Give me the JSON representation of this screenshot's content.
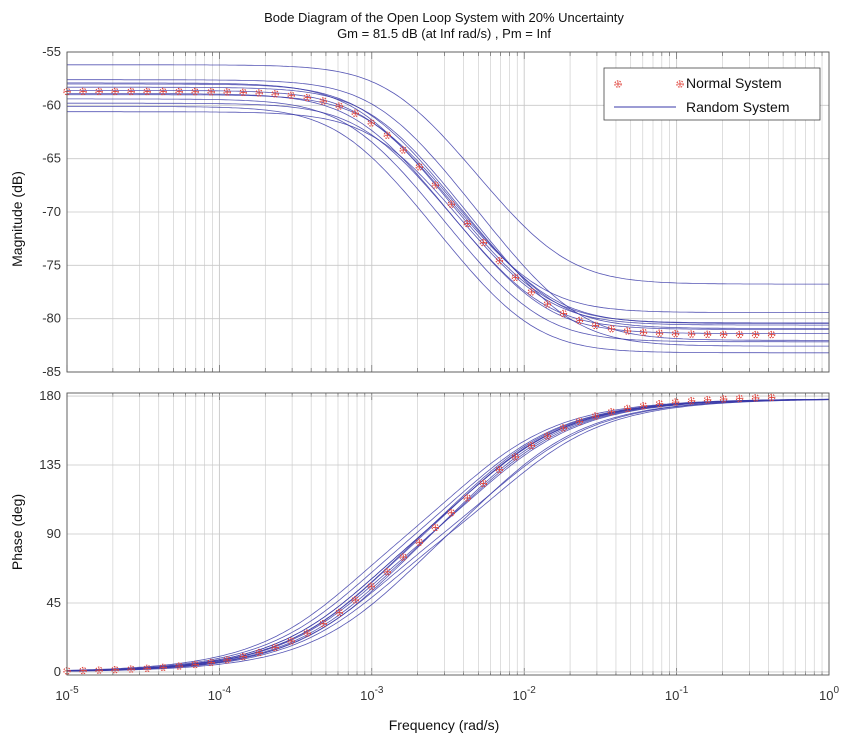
{
  "chart_data": {
    "type": "line",
    "title": "Bode Diagram of the Open Loop System with 20% Uncertainty",
    "subtitle": "Gm = 81.5 dB (at Inf rad/s) ,  Pm = Inf",
    "xlabel": "Frequency  (rad/s)",
    "x_scale": "log",
    "xlim": [
      1e-05,
      1
    ],
    "x_tick_labels": [
      {
        "base": "10",
        "exp": "-5"
      },
      {
        "base": "10",
        "exp": "-4"
      },
      {
        "base": "10",
        "exp": "-3"
      },
      {
        "base": "10",
        "exp": "-2"
      },
      {
        "base": "10",
        "exp": "-1"
      },
      {
        "base": "10",
        "exp": "0"
      }
    ],
    "grid": true,
    "legend": {
      "placement": "top-right",
      "entries": [
        "Normal System",
        "Random System"
      ]
    },
    "colors": {
      "normal": "#e0443c",
      "random": "#3a3aa8",
      "grid": "#c8c8c8",
      "axis": "#555555"
    },
    "magnitude": {
      "ylabel": "Magnitude (dB)",
      "ylim": [
        -85,
        -55
      ],
      "yticks": [
        -55,
        -60,
        -65,
        -70,
        -75,
        -80,
        -85
      ],
      "normal_system": {
        "dc_gain_db": -58.7,
        "hf_gain_db": -81.5,
        "pole_rad_s": 0.001,
        "zero_rad_s": 0.0125
      },
      "random_system": [
        {
          "dc": -57.6,
          "pole": 0.0012,
          "zero": 0.02
        },
        {
          "dc": -58.3,
          "pole": 0.0011,
          "zero": 0.018
        },
        {
          "dc": -56.2,
          "pole": 0.0015,
          "zero": 0.016
        },
        {
          "dc": -58.9,
          "pole": 0.0009,
          "zero": 0.012
        },
        {
          "dc": -59.4,
          "pole": 0.0008,
          "zero": 0.011
        },
        {
          "dc": -60.1,
          "pole": 0.0007,
          "zero": 0.01
        },
        {
          "dc": -58.0,
          "pole": 0.001,
          "zero": 0.014
        },
        {
          "dc": -60.6,
          "pole": 0.0012,
          "zero": 0.012
        },
        {
          "dc": -59.0,
          "pole": 0.0011,
          "zero": 0.013
        },
        {
          "dc": -57.9,
          "pole": 0.0009,
          "zero": 0.012
        },
        {
          "dc": -58.6,
          "pole": 0.001,
          "zero": 0.011
        },
        {
          "dc": -59.8,
          "pole": 0.001,
          "zero": 0.0115
        }
      ]
    },
    "phase": {
      "ylabel": "Phase (deg)",
      "ylim": [
        -2,
        182
      ],
      "yticks": [
        0,
        45,
        90,
        135,
        180
      ]
    }
  }
}
